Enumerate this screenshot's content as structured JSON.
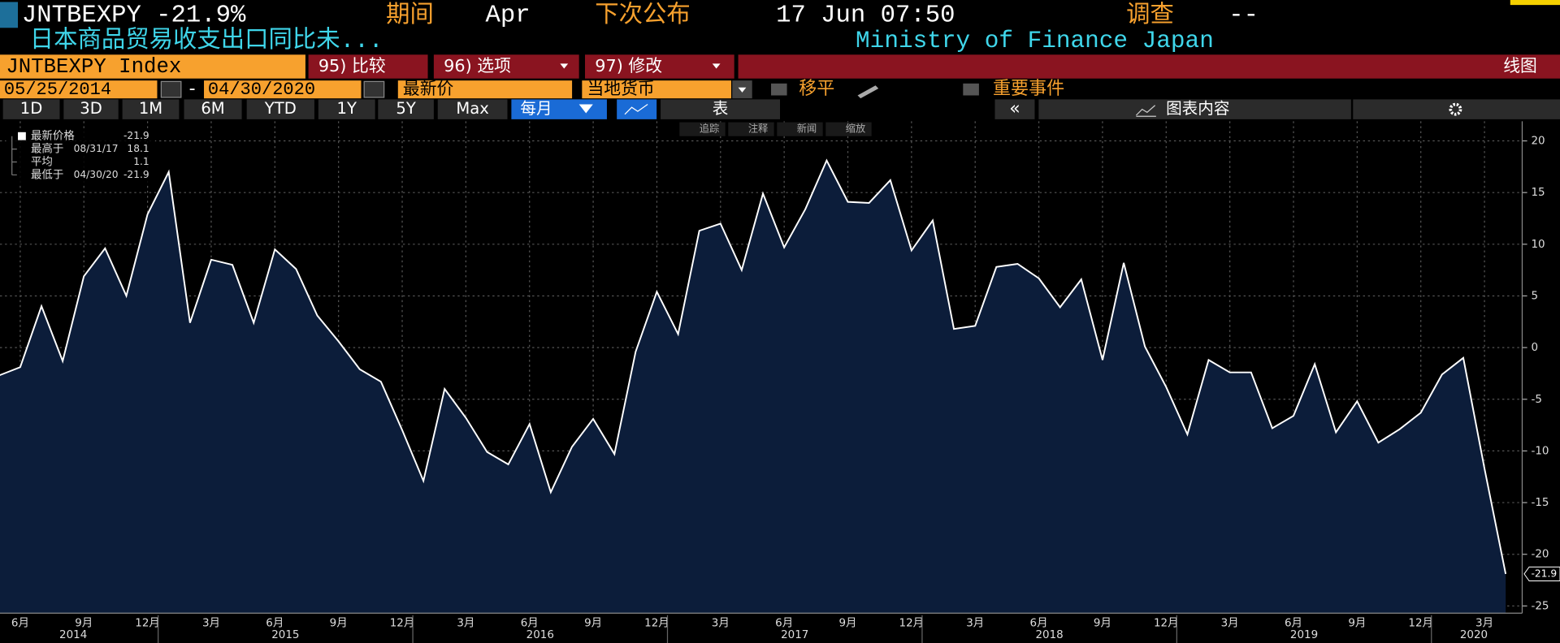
{
  "header": {
    "title": "JNTBEXPY -21.9%",
    "period_label": "期间",
    "period": "Apr",
    "next_release_label": "下次公布",
    "next_release": "17 Jun 07:50",
    "survey_label": "调查",
    "survey": "--",
    "description": "日本商品贸易收支出口同比未...",
    "source": "Ministry of Finance Japan"
  },
  "toolbar": {
    "security": "JNTBEXPY Index",
    "buttons": [
      "95) 比较",
      "96) 选项",
      "97) 修改"
    ],
    "chart_type": "线图",
    "start_date": "05/25/2014",
    "end_date": "04/30/2020",
    "price_field": "最新价",
    "currency": "当地货币",
    "moving_avg": "移平",
    "events": "重要事件",
    "ranges": [
      "1D",
      "3D",
      "1M",
      "6M",
      "YTD",
      "1Y",
      "5Y",
      "Max"
    ],
    "frequency": "每月",
    "table": "表",
    "chart_content": "图表内容",
    "tools": [
      "追踪",
      "注释",
      "新闻",
      "缩放"
    ]
  },
  "chart_data": {
    "type": "area",
    "x": [
      "2014-05",
      "2014-06",
      "2014-07",
      "2014-08",
      "2014-09",
      "2014-10",
      "2014-11",
      "2014-12",
      "2015-01",
      "2015-02",
      "2015-03",
      "2015-04",
      "2015-05",
      "2015-06",
      "2015-07",
      "2015-08",
      "2015-09",
      "2015-10",
      "2015-11",
      "2015-12",
      "2016-01",
      "2016-02",
      "2016-03",
      "2016-04",
      "2016-05",
      "2016-06",
      "2016-07",
      "2016-08",
      "2016-09",
      "2016-10",
      "2016-11",
      "2016-12",
      "2017-01",
      "2017-02",
      "2017-03",
      "2017-04",
      "2017-05",
      "2017-06",
      "2017-07",
      "2017-08",
      "2017-09",
      "2017-10",
      "2017-11",
      "2017-12",
      "2018-01",
      "2018-02",
      "2018-03",
      "2018-04",
      "2018-05",
      "2018-06",
      "2018-07",
      "2018-08",
      "2018-09",
      "2018-10",
      "2018-11",
      "2018-12",
      "2019-01",
      "2019-02",
      "2019-03",
      "2019-04",
      "2019-05",
      "2019-06",
      "2019-07",
      "2019-08",
      "2019-09",
      "2019-10",
      "2019-11",
      "2019-12",
      "2020-01",
      "2020-02",
      "2020-03",
      "2020-04"
    ],
    "series": [
      {
        "color": "#ffffff",
        "fill": "#0c1d3a",
        "values": [
          -2.7,
          -1.9,
          4.0,
          -1.3,
          6.9,
          9.6,
          5.0,
          12.9,
          17.0,
          2.4,
          8.5,
          8.0,
          2.4,
          9.5,
          7.6,
          3.1,
          0.6,
          -2.1,
          -3.3,
          -8.0,
          -12.9,
          -4.0,
          -6.8,
          -10.1,
          -11.3,
          -7.4,
          -14.0,
          -9.6,
          -6.9,
          -10.3,
          -0.4,
          5.4,
          1.3,
          11.3,
          12.0,
          7.5,
          14.9,
          9.7,
          13.4,
          18.1,
          14.1,
          14.0,
          16.2,
          9.4,
          12.3,
          1.8,
          2.1,
          7.8,
          8.1,
          6.7,
          3.9,
          6.6,
          -1.2,
          8.2,
          0.1,
          -3.8,
          -8.4,
          -1.2,
          -2.4,
          -2.4,
          -7.8,
          -6.6,
          -1.6,
          -8.2,
          -5.2,
          -9.2,
          -7.9,
          -6.3,
          -2.6,
          -1.0,
          -11.7,
          -21.9
        ]
      }
    ],
    "ylim": [
      -25.7,
      21.9
    ],
    "yticks": [
      -25,
      -20,
      -15,
      -10,
      -5,
      0,
      5,
      10,
      15,
      20
    ],
    "grid": true,
    "xticks": [
      {
        "value": "2014-06",
        "label": "6月"
      },
      {
        "value": "2014-09",
        "label": "9月"
      },
      {
        "value": "2014-12",
        "label": "12月"
      },
      {
        "value": "2015-03",
        "label": "3月"
      },
      {
        "value": "2015-06",
        "label": "6月"
      },
      {
        "value": "2015-09",
        "label": "9月"
      },
      {
        "value": "2015-12",
        "label": "12月"
      },
      {
        "value": "2016-03",
        "label": "3月"
      },
      {
        "value": "2016-06",
        "label": "6月"
      },
      {
        "value": "2016-09",
        "label": "9月"
      },
      {
        "value": "2016-12",
        "label": "12月"
      },
      {
        "value": "2017-03",
        "label": "3月"
      },
      {
        "value": "2017-06",
        "label": "6月"
      },
      {
        "value": "2017-09",
        "label": "9月"
      },
      {
        "value": "2017-12",
        "label": "12月"
      },
      {
        "value": "2018-03",
        "label": "3月"
      },
      {
        "value": "2018-06",
        "label": "6月"
      },
      {
        "value": "2018-09",
        "label": "9月"
      },
      {
        "value": "2018-12",
        "label": "12月"
      },
      {
        "value": "2019-03",
        "label": "3月"
      },
      {
        "value": "2019-06",
        "label": "6月"
      },
      {
        "value": "2019-09",
        "label": "9月"
      },
      {
        "value": "2019-12",
        "label": "12月"
      },
      {
        "value": "2020-03",
        "label": "3月"
      }
    ],
    "years": [
      2014,
      2015,
      2016,
      2017,
      2018,
      2019,
      2020
    ],
    "stats": [
      {
        "name": "最新价格",
        "value": -21.9
      },
      {
        "name": "最高于",
        "date": "08/31/17",
        "value": 18.1
      },
      {
        "name": "平均",
        "value": 1.1
      },
      {
        "name": "最低于",
        "date": "04/30/20",
        "value": -21.9
      }
    ]
  }
}
